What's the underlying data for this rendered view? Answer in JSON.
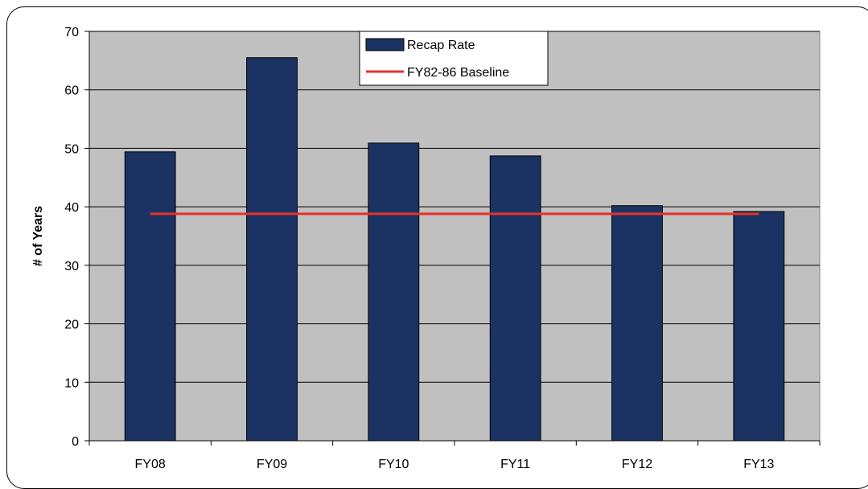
{
  "chart_data": {
    "type": "bar",
    "categories": [
      "FY08",
      "FY09",
      "FY10",
      "FY11",
      "FY12",
      "FY13"
    ],
    "series": [
      {
        "name": "Recap Rate",
        "type": "bar",
        "values": [
          49.4,
          65.5,
          50.9,
          48.7,
          40.2,
          39.2
        ],
        "color": "#1b3362"
      },
      {
        "name": "FY82-86 Baseline",
        "type": "line",
        "values": [
          38.8,
          38.8,
          38.8,
          38.8,
          38.8,
          38.8
        ],
        "color": "#e8302a"
      }
    ],
    "xlabel": "",
    "ylabel": "# of Years",
    "ylim": [
      0,
      70
    ],
    "yticks": [
      0,
      10,
      20,
      30,
      40,
      50,
      60,
      70
    ],
    "grid": true,
    "plot_background": "#c0c0c0",
    "legend_position": "top-center"
  }
}
